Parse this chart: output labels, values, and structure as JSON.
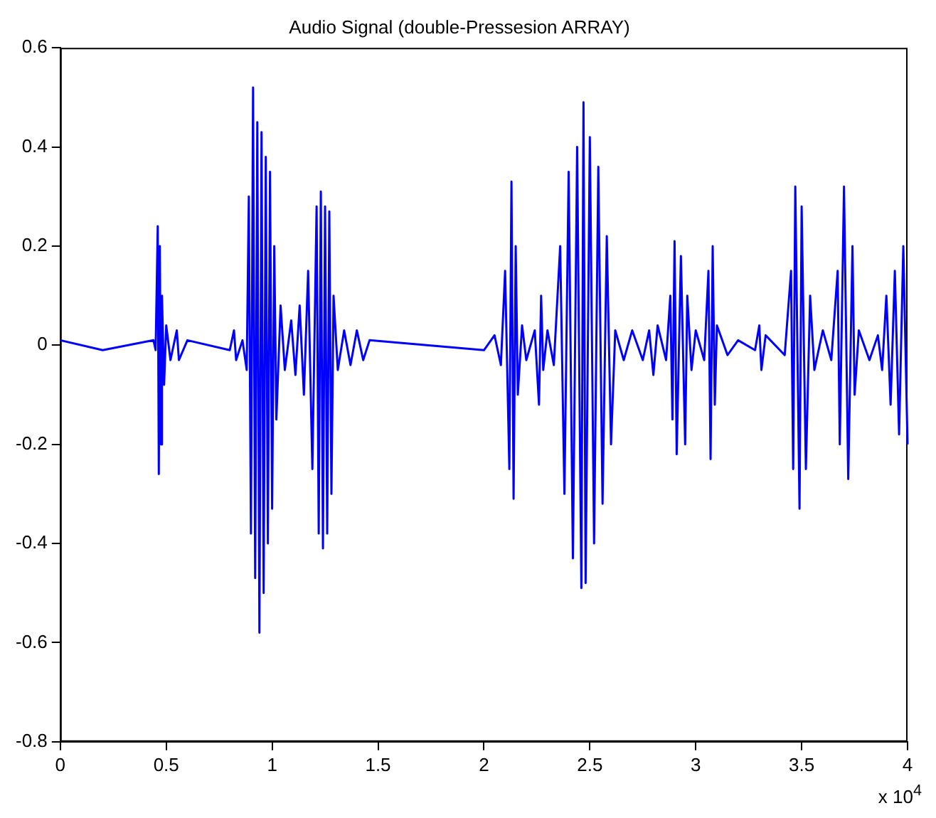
{
  "chart_data": {
    "type": "line",
    "title": "Audio Signal (double-Pressesion ARRAY)",
    "annotations": [
      "x 10$^{4}$"
    ],
    "x": [
      0,
      0.2,
      0.44,
      0.45,
      0.46,
      0.465,
      0.47,
      0.475,
      0.48,
      0.49,
      0.5,
      0.52,
      0.55,
      0.56,
      0.6,
      0.8,
      0.82,
      0.83,
      0.86,
      0.88,
      0.89,
      0.9,
      0.91,
      0.92,
      0.93,
      0.94,
      0.95,
      0.96,
      0.97,
      0.98,
      0.99,
      1.0,
      1.01,
      1.02,
      1.04,
      1.06,
      1.09,
      1.11,
      1.13,
      1.15,
      1.17,
      1.19,
      1.21,
      1.22,
      1.23,
      1.24,
      1.25,
      1.26,
      1.27,
      1.28,
      1.29,
      1.31,
      1.34,
      1.37,
      1.4,
      1.43,
      1.46,
      2.0,
      2.05,
      2.08,
      2.1,
      2.12,
      2.13,
      2.14,
      2.15,
      2.16,
      2.18,
      2.2,
      2.24,
      2.26,
      2.27,
      2.28,
      2.3,
      2.33,
      2.36,
      2.38,
      2.4,
      2.42,
      2.44,
      2.46,
      2.47,
      2.48,
      2.5,
      2.52,
      2.54,
      2.56,
      2.58,
      2.6,
      2.62,
      2.66,
      2.7,
      2.75,
      2.78,
      2.8,
      2.82,
      2.86,
      2.88,
      2.89,
      2.9,
      2.91,
      2.93,
      2.95,
      2.96,
      2.98,
      3.0,
      3.04,
      3.06,
      3.07,
      3.08,
      3.09,
      3.1,
      3.15,
      3.2,
      3.28,
      3.3,
      3.31,
      3.33,
      3.42,
      3.45,
      3.46,
      3.47,
      3.49,
      3.5,
      3.52,
      3.54,
      3.56,
      3.6,
      3.64,
      3.67,
      3.68,
      3.7,
      3.72,
      3.74,
      3.75,
      3.77,
      3.82,
      3.86,
      3.88,
      3.9,
      3.92,
      3.94,
      3.96,
      3.98,
      4.0
    ],
    "series": [
      {
        "color": "#0000ff",
        "values": [
          0.01,
          -0.01,
          0.01,
          -0.01,
          0.24,
          -0.26,
          0.2,
          -0.2,
          0.1,
          -0.08,
          0.04,
          -0.03,
          0.03,
          -0.03,
          0.01,
          -0.01,
          0.03,
          -0.03,
          0.01,
          -0.05,
          0.3,
          -0.38,
          0.52,
          -0.47,
          0.45,
          -0.58,
          0.43,
          -0.5,
          0.38,
          -0.4,
          0.35,
          -0.33,
          0.2,
          -0.15,
          0.08,
          -0.05,
          0.05,
          -0.06,
          0.08,
          -0.1,
          0.15,
          -0.25,
          0.28,
          -0.38,
          0.31,
          -0.41,
          0.28,
          -0.38,
          0.27,
          -0.3,
          0.1,
          -0.05,
          0.03,
          -0.04,
          0.03,
          -0.03,
          0.01,
          -0.01,
          0.02,
          -0.04,
          0.15,
          -0.25,
          0.33,
          -0.31,
          0.2,
          -0.1,
          0.04,
          -0.03,
          0.03,
          -0.12,
          0.1,
          -0.05,
          0.03,
          -0.04,
          0.2,
          -0.3,
          0.35,
          -0.43,
          0.4,
          -0.49,
          0.49,
          -0.48,
          0.42,
          -0.4,
          0.36,
          -0.32,
          0.22,
          -0.2,
          0.03,
          -0.03,
          0.03,
          -0.03,
          0.03,
          -0.06,
          0.04,
          -0.03,
          0.1,
          -0.15,
          0.21,
          -0.22,
          0.18,
          -0.2,
          0.1,
          -0.05,
          0.03,
          -0.03,
          0.15,
          -0.23,
          0.2,
          -0.12,
          0.04,
          -0.02,
          0.01,
          -0.01,
          0.04,
          -0.05,
          0.02,
          -0.02,
          0.15,
          -0.25,
          0.32,
          -0.33,
          0.28,
          -0.25,
          0.1,
          -0.05,
          0.03,
          -0.03,
          0.15,
          -0.2,
          0.32,
          -0.27,
          0.2,
          -0.1,
          0.03,
          -0.03,
          0.02,
          -0.05,
          0.1,
          -0.12,
          0.15,
          -0.18,
          0.2,
          -0.2
        ]
      }
    ],
    "xlim": [
      0,
      4
    ],
    "ylim": [
      -0.8,
      0.6
    ],
    "xticks": [
      0,
      0.5,
      1,
      1.5,
      2,
      2.5,
      3,
      3.5,
      4
    ],
    "yticks": [
      -0.8,
      -0.6,
      -0.4,
      -0.2,
      0,
      0.2,
      0.4,
      0.6
    ]
  }
}
